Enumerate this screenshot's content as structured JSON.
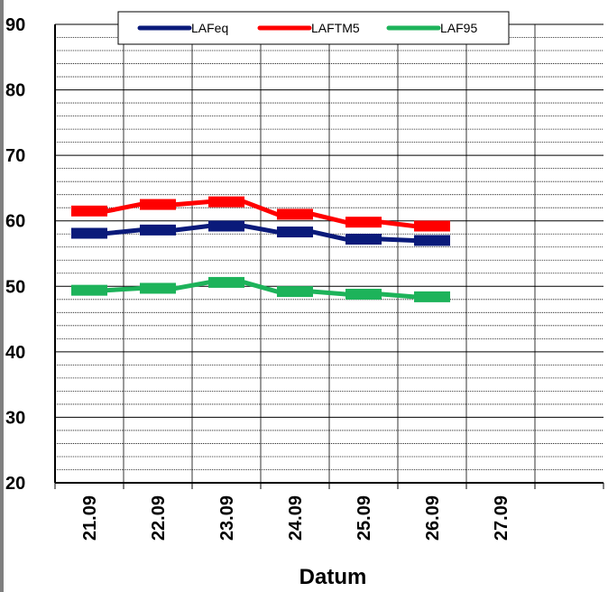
{
  "chart_data": {
    "type": "line",
    "xlabel": "Datum",
    "ylabel": "",
    "ylim": [
      20,
      90
    ],
    "yticks": [
      "20",
      "30",
      "40",
      "50",
      "60",
      "70",
      "80",
      "90"
    ],
    "categories": [
      "21.09",
      "22.09",
      "23.09",
      "24.09",
      "25.09",
      "26.09",
      "27.09"
    ],
    "grid": true,
    "legend_position": "top",
    "series": [
      {
        "name": "LAFeq",
        "color": "#0a1a7a",
        "values": [
          58.1,
          58.6,
          59.2,
          58.3,
          57.2,
          57.0,
          null
        ]
      },
      {
        "name": "LAFTM5",
        "color": "#ff0000",
        "values": [
          61.5,
          62.5,
          62.9,
          61.0,
          59.8,
          59.2,
          null
        ]
      },
      {
        "name": "LAF95",
        "color": "#1db35a",
        "values": [
          49.4,
          49.7,
          50.6,
          49.2,
          48.8,
          48.4,
          null
        ]
      }
    ]
  }
}
